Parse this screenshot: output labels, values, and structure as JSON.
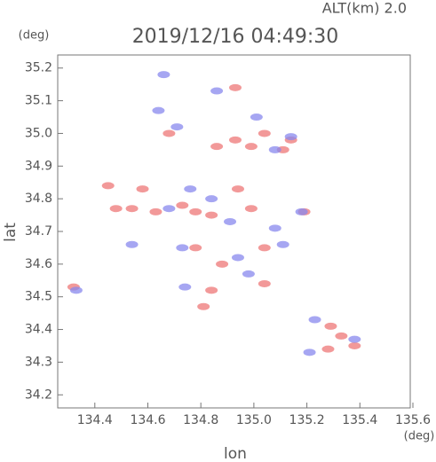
{
  "chart_data": {
    "type": "scatter",
    "title": "2019/12/16 04:49:30",
    "subtitle": "ALT(km)  2.0",
    "y_unit": "(deg)",
    "x_unit": "(deg)",
    "x_label": "lon",
    "y_label": "lat",
    "xlim": [
      134.26,
      135.59
    ],
    "ylim": [
      34.16,
      35.24
    ],
    "xticks": [
      134.4,
      134.6,
      134.8,
      {
        "value": 135,
        "label": "135.0"
      },
      135.2,
      135.4,
      135.6
    ],
    "yticks": [
      34.2,
      34.3,
      34.4,
      34.5,
      34.6,
      34.7,
      34.8,
      34.9,
      {
        "value": 35,
        "label": "35.0"
      },
      35.1,
      35.2
    ],
    "series": [
      {
        "color": "#ee7777",
        "x": [
          134.68,
          134.86,
          134.93,
          134.99,
          135.04,
          135.11,
          134.93,
          134.48,
          134.54,
          134.63,
          134.73,
          134.78,
          134.84,
          134.45,
          134.58,
          134.99,
          135.04,
          134.88,
          134.84,
          134.81,
          135.04,
          134.32,
          135.19,
          135.28,
          135.33,
          135.38,
          135.29,
          135.14,
          134.94,
          134.78
        ],
        "values": [
          35.0,
          34.96,
          34.98,
          34.96,
          35.0,
          34.95,
          35.14,
          34.77,
          34.77,
          34.76,
          34.78,
          34.76,
          34.75,
          34.84,
          34.83,
          34.77,
          34.65,
          34.6,
          34.52,
          34.47,
          34.54,
          34.53,
          34.76,
          34.34,
          34.38,
          34.35,
          34.41,
          34.98,
          34.83,
          34.65
        ]
      },
      {
        "color": "#8888ee",
        "x": [
          134.66,
          134.86,
          134.64,
          134.71,
          135.08,
          135.01,
          134.76,
          134.84,
          135.18,
          135.08,
          134.98,
          134.74,
          134.73,
          134.54,
          134.33,
          135.21,
          135.38,
          135.23,
          135.14,
          134.68,
          134.91,
          135.11,
          134.94
        ],
        "values": [
          35.18,
          35.13,
          35.07,
          35.02,
          34.95,
          35.05,
          34.83,
          34.8,
          34.76,
          34.71,
          34.57,
          34.53,
          34.65,
          34.66,
          34.52,
          34.33,
          34.37,
          34.43,
          34.99,
          34.77,
          34.73,
          34.66,
          34.62
        ]
      }
    ]
  }
}
